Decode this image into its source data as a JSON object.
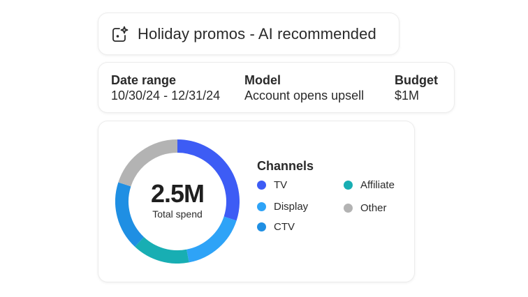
{
  "header": {
    "icon": "ai-sparkle-icon",
    "title": "Holiday promos - AI recommended"
  },
  "details": {
    "date_range": {
      "label": "Date range",
      "value": "10/30/24 - 12/31/24"
    },
    "model": {
      "label": "Model",
      "value": "Account opens upsell"
    },
    "budget": {
      "label": "Budget",
      "value": "$1M"
    }
  },
  "summary": {
    "total_value": "2.5M",
    "total_label": "Total spend",
    "legend_title": "Channels",
    "channels": [
      {
        "label": "TV",
        "color": "#3d5cf5"
      },
      {
        "label": "Display",
        "color": "#2ea3f7"
      },
      {
        "label": "CTV",
        "color": "#1f8fe3"
      },
      {
        "label": "Affiliate",
        "color": "#18aeb3"
      },
      {
        "label": "Other",
        "color": "#b3b3b3"
      }
    ]
  },
  "chart_data": {
    "type": "pie",
    "subtype": "donut",
    "title": "Channels",
    "center_text": "2.5M",
    "center_subtext": "Total spend",
    "categories": [
      "TV",
      "Display",
      "Affiliate",
      "CTV",
      "Other"
    ],
    "values": [
      30,
      17,
      15,
      18,
      20
    ],
    "unit": "% of total spend (estimated from arc lengths)",
    "colors": [
      "#3d5cf5",
      "#2ea3f7",
      "#18aeb3",
      "#1f8fe3",
      "#b3b3b3"
    ],
    "start_angle_deg": 0,
    "direction": "clockwise",
    "legend_position": "right"
  }
}
